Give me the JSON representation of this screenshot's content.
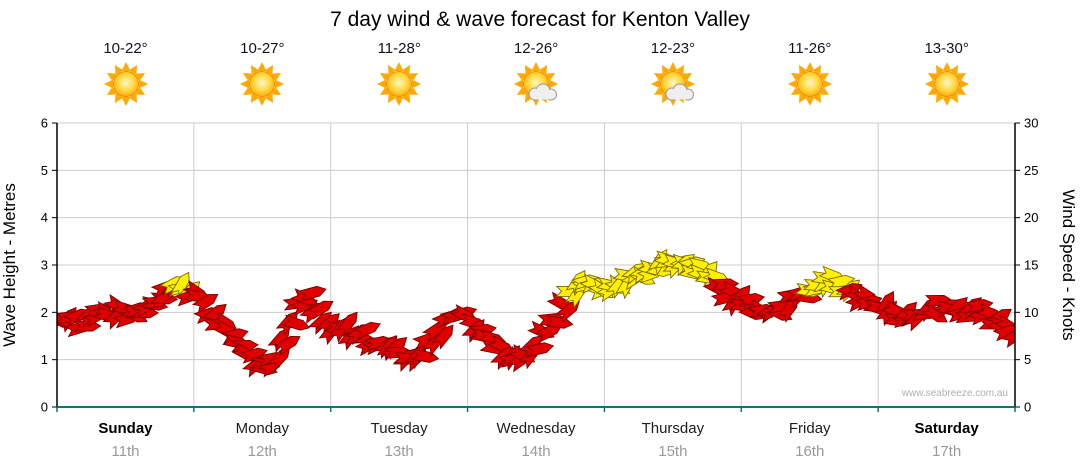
{
  "title": "7 day wind & wave forecast for Kenton Valley",
  "watermark": "www.seabreeze.com.au",
  "y_left": {
    "label": "Wave Height - Metres",
    "ticks": [
      0,
      1,
      2,
      3,
      4,
      5,
      6
    ]
  },
  "y_right": {
    "label": "Wind Speed - Knots",
    "ticks": [
      0,
      5,
      10,
      15,
      20,
      25,
      30
    ]
  },
  "days": [
    {
      "name": "Sunday",
      "date": "11th",
      "temp": "10-22°",
      "icon": "sun",
      "weekend": true
    },
    {
      "name": "Monday",
      "date": "12th",
      "temp": "10-27°",
      "icon": "sun",
      "weekend": false
    },
    {
      "name": "Tuesday",
      "date": "13th",
      "temp": "11-28°",
      "icon": "sun",
      "weekend": false
    },
    {
      "name": "Wednesday",
      "date": "14th",
      "temp": "12-26°",
      "icon": "sun-cloud",
      "weekend": false
    },
    {
      "name": "Thursday",
      "date": "15th",
      "temp": "12-23°",
      "icon": "sun-cloud",
      "weekend": false
    },
    {
      "name": "Friday",
      "date": "16th",
      "temp": "11-26°",
      "icon": "sun",
      "weekend": false
    },
    {
      "name": "Saturday",
      "date": "17th",
      "temp": "13-30°",
      "icon": "sun",
      "weekend": true
    }
  ],
  "colors": {
    "red": "#E00000",
    "red_stroke": "#7A0000",
    "yellow": "#FFF000",
    "yellow_stroke": "#7A6C00",
    "grid": "#CCCCCC",
    "axis": "#000000",
    "x_axis": "#0D7373",
    "date_text": "#9A9A9A"
  },
  "chart_data": {
    "type": "wind-barb-timeseries",
    "title": "7 day wind & wave forecast for Kenton Valley",
    "x_unit": "days",
    "x_range": [
      0,
      7
    ],
    "x_categories": [
      "Sunday 11th",
      "Monday 12th",
      "Tuesday 13th",
      "Wednesday 14th",
      "Thursday 15th",
      "Friday 16th",
      "Saturday 17th"
    ],
    "y_left_label": "Wave Height - Metres",
    "y_left_range": [
      0,
      6
    ],
    "y_right_label": "Wind Speed - Knots",
    "y_right_range": [
      0,
      30
    ],
    "grid": true,
    "point_format": [
      "time_in_days",
      "wind_speed_knots",
      "color_code_r_red_y_yellow"
    ],
    "points": [
      [
        0.04,
        9.0,
        "r"
      ],
      [
        0.11,
        9.8,
        "r"
      ],
      [
        0.18,
        8.6,
        "r"
      ],
      [
        0.25,
        9.4,
        "r"
      ],
      [
        0.32,
        10.2,
        "r"
      ],
      [
        0.39,
        9.2,
        "r"
      ],
      [
        0.46,
        10.4,
        "r"
      ],
      [
        0.53,
        9.6,
        "r"
      ],
      [
        0.6,
        10.2,
        "r"
      ],
      [
        0.67,
        10.8,
        "r"
      ],
      [
        0.74,
        11.4,
        "r"
      ],
      [
        0.81,
        12.2,
        "r"
      ],
      [
        0.87,
        13.0,
        "y"
      ],
      [
        0.93,
        12.6,
        "y"
      ],
      [
        0.98,
        11.8,
        "r"
      ],
      [
        1.05,
        11.2,
        "r"
      ],
      [
        1.12,
        10.2,
        "r"
      ],
      [
        1.19,
        9.0,
        "r"
      ],
      [
        1.26,
        7.6,
        "r"
      ],
      [
        1.33,
        6.4,
        "r"
      ],
      [
        1.4,
        5.4,
        "r"
      ],
      [
        1.47,
        4.6,
        "r"
      ],
      [
        1.53,
        4.2,
        "r"
      ],
      [
        1.59,
        5.2,
        "r"
      ],
      [
        1.65,
        6.8,
        "r"
      ],
      [
        1.71,
        8.8,
        "r"
      ],
      [
        1.77,
        11.0,
        "r"
      ],
      [
        1.83,
        11.8,
        "r"
      ],
      [
        1.89,
        10.4,
        "r"
      ],
      [
        1.95,
        8.6,
        "r"
      ],
      [
        2.02,
        7.8,
        "r"
      ],
      [
        2.09,
        8.6,
        "r"
      ],
      [
        2.16,
        7.4,
        "r"
      ],
      [
        2.23,
        8.2,
        "r"
      ],
      [
        2.3,
        7.0,
        "r"
      ],
      [
        2.37,
        6.6,
        "r"
      ],
      [
        2.44,
        6.0,
        "r"
      ],
      [
        2.51,
        5.6,
        "r"
      ],
      [
        2.58,
        5.2,
        "r"
      ],
      [
        2.65,
        5.6,
        "r"
      ],
      [
        2.72,
        6.8,
        "r"
      ],
      [
        2.79,
        8.0,
        "r"
      ],
      [
        2.86,
        9.2,
        "r"
      ],
      [
        2.93,
        9.8,
        "r"
      ],
      [
        3.0,
        9.4,
        "r"
      ],
      [
        3.07,
        8.4,
        "r"
      ],
      [
        3.14,
        7.4,
        "r"
      ],
      [
        3.21,
        6.6,
        "r"
      ],
      [
        3.28,
        5.8,
        "r"
      ],
      [
        3.35,
        5.2,
        "r"
      ],
      [
        3.42,
        5.8,
        "r"
      ],
      [
        3.49,
        6.6,
        "r"
      ],
      [
        3.56,
        7.6,
        "r"
      ],
      [
        3.63,
        9.0,
        "r"
      ],
      [
        3.7,
        10.6,
        "r"
      ],
      [
        3.76,
        12.2,
        "y"
      ],
      [
        3.82,
        12.8,
        "y"
      ],
      [
        3.88,
        13.2,
        "y"
      ],
      [
        3.94,
        12.8,
        "y"
      ],
      [
        4.0,
        12.6,
        "y"
      ],
      [
        4.06,
        12.9,
        "y"
      ],
      [
        4.12,
        13.2,
        "y"
      ],
      [
        4.18,
        13.6,
        "y"
      ],
      [
        4.24,
        14.0,
        "y"
      ],
      [
        4.3,
        14.4,
        "y"
      ],
      [
        4.36,
        14.7,
        "y"
      ],
      [
        4.42,
        15.0,
        "y"
      ],
      [
        4.48,
        15.3,
        "y"
      ],
      [
        4.54,
        15.4,
        "y"
      ],
      [
        4.6,
        15.1,
        "y"
      ],
      [
        4.66,
        14.6,
        "y"
      ],
      [
        4.72,
        14.0,
        "y"
      ],
      [
        4.78,
        13.4,
        "y"
      ],
      [
        4.84,
        12.6,
        "r"
      ],
      [
        4.9,
        11.9,
        "r"
      ],
      [
        4.96,
        11.4,
        "r"
      ],
      [
        5.03,
        11.0,
        "r"
      ],
      [
        5.1,
        10.4,
        "r"
      ],
      [
        5.17,
        9.8,
        "r"
      ],
      [
        5.24,
        10.2,
        "r"
      ],
      [
        5.31,
        10.8,
        "r"
      ],
      [
        5.38,
        11.4,
        "r"
      ],
      [
        5.45,
        12.0,
        "r"
      ],
      [
        5.51,
        12.6,
        "y"
      ],
      [
        5.57,
        13.0,
        "y"
      ],
      [
        5.63,
        13.4,
        "y"
      ],
      [
        5.69,
        13.0,
        "y"
      ],
      [
        5.75,
        12.6,
        "y"
      ],
      [
        5.81,
        12.0,
        "r"
      ],
      [
        5.88,
        11.4,
        "r"
      ],
      [
        5.95,
        11.0,
        "r"
      ],
      [
        6.02,
        10.6,
        "r"
      ],
      [
        6.09,
        10.2,
        "r"
      ],
      [
        6.16,
        9.6,
        "r"
      ],
      [
        6.23,
        10.0,
        "r"
      ],
      [
        6.3,
        9.4,
        "r"
      ],
      [
        6.38,
        10.2,
        "r"
      ],
      [
        6.46,
        10.8,
        "r"
      ],
      [
        6.54,
        10.4,
        "r"
      ],
      [
        6.62,
        9.8,
        "r"
      ],
      [
        6.7,
        10.6,
        "r"
      ],
      [
        6.78,
        10.0,
        "r"
      ],
      [
        6.85,
        9.2,
        "r"
      ],
      [
        6.91,
        8.6,
        "r"
      ],
      [
        6.96,
        8.0,
        "r"
      ]
    ]
  }
}
